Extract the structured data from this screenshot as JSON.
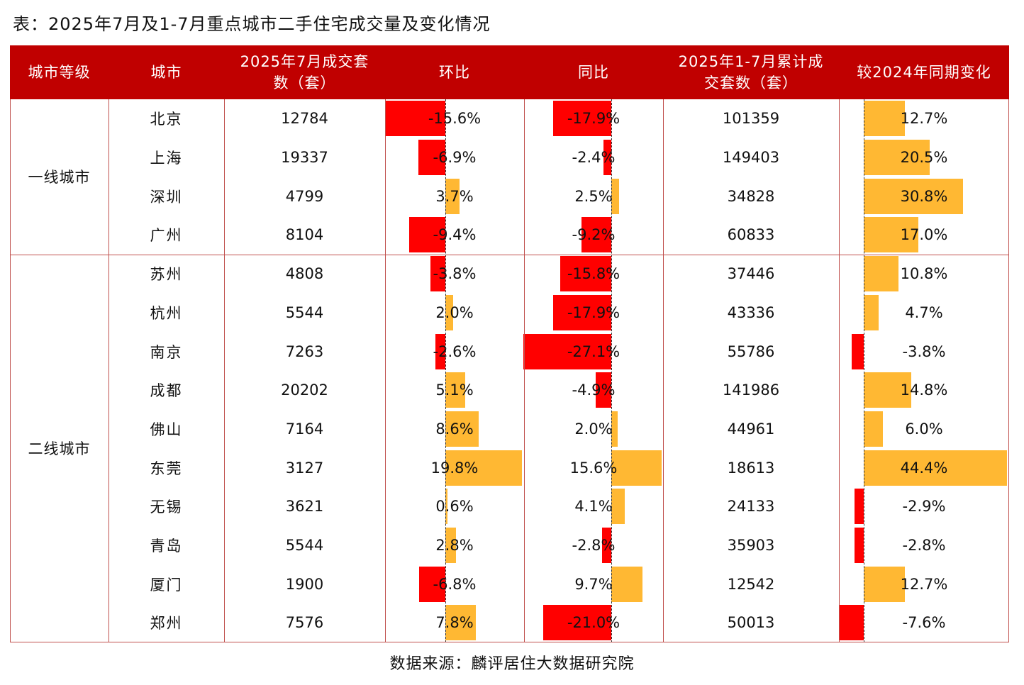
{
  "title": "表：2025年7月及1-7月重点城市二手住宅成交量及变化情况",
  "source": "数据来源：麟评居住大数据研究院",
  "colors": {
    "header_bg": "#c00000",
    "negative": "#ff0000",
    "positive": "#ffb833"
  },
  "headers": [
    "城市等级",
    "城市",
    "2025年7月成交套\n数（套）",
    "环比",
    "同比",
    "2025年1-7月累计成\n交套数（套）",
    "较2024年同期变化"
  ],
  "tiers": [
    {
      "name": "一线城市",
      "count": 4
    },
    {
      "name": "二线城市",
      "count": 10
    }
  ],
  "rows": [
    {
      "city": "北京",
      "july": "12784",
      "mom": -15.6,
      "yoy": -17.9,
      "cum": "101359",
      "chg": 12.7
    },
    {
      "city": "上海",
      "july": "19337",
      "mom": -6.9,
      "yoy": -2.4,
      "cum": "149403",
      "chg": 20.5
    },
    {
      "city": "深圳",
      "july": "4799",
      "mom": 3.7,
      "yoy": 2.5,
      "cum": "34828",
      "chg": 30.8
    },
    {
      "city": "广州",
      "july": "8104",
      "mom": -9.4,
      "yoy": -9.2,
      "cum": "60833",
      "chg": 17.0
    },
    {
      "city": "苏州",
      "july": "4808",
      "mom": -3.8,
      "yoy": -15.8,
      "cum": "37446",
      "chg": 10.8
    },
    {
      "city": "杭州",
      "july": "5544",
      "mom": 2.0,
      "yoy": -17.9,
      "cum": "43336",
      "chg": 4.7
    },
    {
      "city": "南京",
      "july": "7263",
      "mom": -2.6,
      "yoy": -27.1,
      "cum": "55786",
      "chg": -3.8
    },
    {
      "city": "成都",
      "july": "20202",
      "mom": 5.1,
      "yoy": -4.9,
      "cum": "141986",
      "chg": 14.8
    },
    {
      "city": "佛山",
      "july": "7164",
      "mom": 8.6,
      "yoy": 2.0,
      "cum": "44961",
      "chg": 6.0
    },
    {
      "city": "东莞",
      "july": "3127",
      "mom": 19.8,
      "yoy": 15.6,
      "cum": "18613",
      "chg": 44.4
    },
    {
      "city": "无锡",
      "july": "3621",
      "mom": 0.6,
      "yoy": 4.1,
      "cum": "24133",
      "chg": -2.9
    },
    {
      "city": "青岛",
      "july": "5544",
      "mom": 2.8,
      "yoy": -2.8,
      "cum": "35903",
      "chg": -2.8
    },
    {
      "city": "厦门",
      "july": "1900",
      "mom": -6.8,
      "yoy": 9.7,
      "cum": "12542",
      "chg": 12.7
    },
    {
      "city": "郑州",
      "july": "7576",
      "mom": 7.8,
      "yoy": -21.0,
      "cum": "50013",
      "chg": -7.6
    }
  ]
}
